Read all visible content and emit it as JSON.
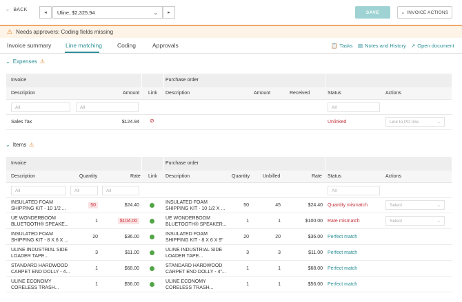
{
  "topbar": {
    "back_label": "BACK",
    "prev_label": "◂",
    "next_label": "▸",
    "invoice_select": "Uline, $2,325.94",
    "save_label": "SAVE",
    "actions_label": "INVOICE ACTIONS"
  },
  "alert": {
    "text": "Needs approvers: Coding fields missing"
  },
  "tabs": [
    {
      "label": "Invoice summary"
    },
    {
      "label": "Line matching"
    },
    {
      "label": "Coding"
    },
    {
      "label": "Approvals"
    }
  ],
  "tab_links": [
    {
      "label": "Tasks"
    },
    {
      "label": "Notes and History"
    },
    {
      "label": "Open document"
    }
  ],
  "expenses": {
    "title": "Expenses",
    "group_invoice": "Invoice",
    "group_po": "Purchase order",
    "headers": {
      "description": "Description",
      "amount": "Amount",
      "link": "Link",
      "po_description": "Description",
      "po_amount": "Amount",
      "received": "Received",
      "status": "Status",
      "actions": "Actions"
    },
    "filters": {
      "f1": "All",
      "f2": "All",
      "f3": "All"
    },
    "rows": [
      {
        "description": "Sales Tax",
        "amount": "$124.94",
        "status": "Unlinked",
        "action": "Link to PO line"
      }
    ]
  },
  "items": {
    "title": "Items",
    "group_invoice": "Invoice",
    "group_po": "Purchase order",
    "headers": {
      "description": "Description",
      "quantity": "Quantity",
      "rate": "Rate",
      "link": "Link",
      "po_description": "Description",
      "po_quantity": "Quantity",
      "unbilled": "Unbilled",
      "po_rate": "Rate",
      "status": "Status",
      "actions": "Actions"
    },
    "filters": {
      "f1": "All",
      "f2": "All",
      "f3": "All",
      "f4": "All"
    },
    "rows": [
      {
        "d1": "INSULATED FOAM",
        "d2": "SHIPPING KIT - 10 1/2 ...",
        "qty": "50",
        "rate": "$24.40",
        "p1": "INSULATED FOAM",
        "p2": "SHIPPING KIT - 10 1/2 X ...",
        "pqty": "50",
        "unbilled": "45",
        "prate": "$24.40",
        "status": "Quantity mismatch",
        "action": "Select"
      },
      {
        "d1": "UE WONDERBOOM",
        "d2": "BLUETOOTH® SPEAKE...",
        "qty": "1",
        "rate": "$104.00",
        "p1": "UE WONDERBOOM",
        "p2": "BLUETOOTH® SPEAKER...",
        "pqty": "1",
        "unbilled": "1",
        "prate": "$100.00",
        "status": "Rate mismatch",
        "action": "Select"
      },
      {
        "d1": "INSULATED FOAM",
        "d2": "SHIPPING KIT - 8 X 6 X ...",
        "qty": "20",
        "rate": "$36.00",
        "p1": "INSULATED FOAM",
        "p2": "SHIPPING KIT - 8 X 6 X 9\"",
        "pqty": "20",
        "unbilled": "20",
        "prate": "$36.00",
        "status": "Perfect match",
        "action": ""
      },
      {
        "d1": "ULINE INDUSTRIAL SIDE",
        "d2": "LOADER TAPE...",
        "qty": "3",
        "rate": "$11.00",
        "p1": "ULINE INDUSTRIAL SIDE",
        "p2": "LOADER TAPE...",
        "pqty": "3",
        "unbilled": "3",
        "prate": "$11.00",
        "status": "Perfect match",
        "action": ""
      },
      {
        "d1": "STANDARD HARDWOOD",
        "d2": "CARPET END DOLLY - 4...",
        "qty": "1",
        "rate": "$68.00",
        "p1": "STANDARD HARDWOOD",
        "p2": "CARPET END DOLLY - 4\"...",
        "pqty": "1",
        "unbilled": "1",
        "prate": "$68.00",
        "status": "Perfect match",
        "action": ""
      },
      {
        "d1": "ULINE ECONOMY",
        "d2": "CORELESS TRASH...",
        "qty": "1",
        "rate": "$56.00",
        "p1": "ULINE ECONOMY",
        "p2": "CORELESS TRASH...",
        "pqty": "1",
        "unbilled": "1",
        "prate": "$56.00",
        "status": "Perfect match",
        "action": ""
      }
    ]
  }
}
